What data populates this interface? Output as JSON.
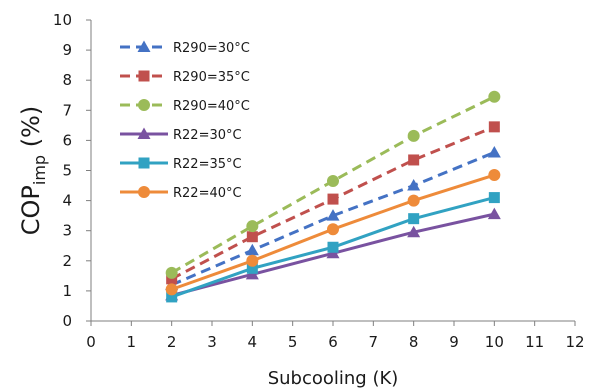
{
  "chart_data": {
    "type": "line",
    "xlabel": "Subcooling (K)",
    "ylabel": {
      "main": "COP",
      "sub": "imp",
      "suffix": " (%)"
    },
    "xlim": [
      0,
      12
    ],
    "ylim": [
      0,
      10
    ],
    "xticks": [
      "0",
      "1",
      "2",
      "3",
      "4",
      "5",
      "6",
      "7",
      "8",
      "9",
      "10",
      "11",
      "12"
    ],
    "yticks": [
      "0",
      "1",
      "2",
      "3",
      "4",
      "5",
      "6",
      "7",
      "8",
      "9",
      "10"
    ],
    "grid": false,
    "legend": "top-left",
    "x": [
      2,
      4,
      6,
      8,
      10
    ],
    "series": [
      {
        "name": "R290=30°C",
        "values": [
          1.2,
          2.35,
          3.5,
          4.5,
          5.6
        ],
        "color": "#4472c4",
        "marker": "triangle",
        "dash": true
      },
      {
        "name": "R290=35°C",
        "values": [
          1.4,
          2.8,
          4.05,
          5.35,
          6.45
        ],
        "color": "#c0504d",
        "marker": "square",
        "dash": true
      },
      {
        "name": "R290=40°C",
        "values": [
          1.6,
          3.15,
          4.65,
          6.15,
          7.45
        ],
        "color": "#9bbb59",
        "marker": "circle",
        "dash": true
      },
      {
        "name": "R22=30°C",
        "values": [
          0.85,
          1.55,
          2.25,
          2.95,
          3.55
        ],
        "color": "#7952a0",
        "marker": "triangle",
        "dash": false
      },
      {
        "name": "R22=35°C",
        "values": [
          0.8,
          1.75,
          2.45,
          3.4,
          4.1
        ],
        "color": "#31a2c2",
        "marker": "square",
        "dash": false
      },
      {
        "name": "R22=40°C",
        "values": [
          1.05,
          2.0,
          3.05,
          4.0,
          4.85
        ],
        "color": "#ee8b3a",
        "marker": "circle",
        "dash": false
      }
    ]
  }
}
